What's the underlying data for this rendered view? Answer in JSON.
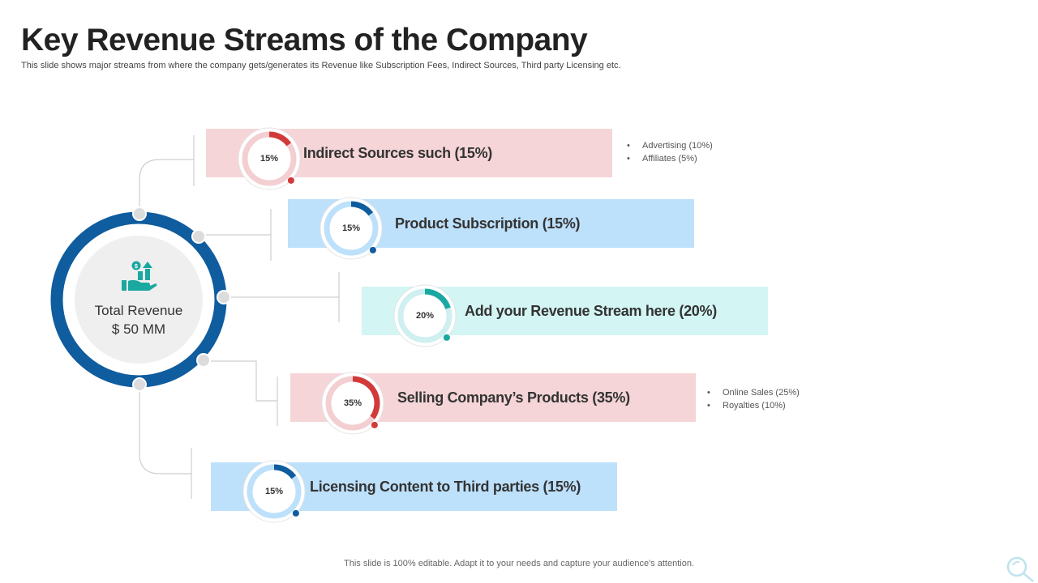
{
  "header": {
    "title": "Key Revenue Streams of the Company",
    "subtitle": "This slide shows major streams from where the company gets/generates its Revenue like Subscription Fees, Indirect Sources, Third party Licensing etc."
  },
  "hub": {
    "line1": "Total Revenue",
    "line2": "$ 50 MM",
    "icon": "money-growth-hand-icon",
    "ring_color": "#0f5c9e"
  },
  "streams": [
    {
      "label": "Indirect Sources such (15%)",
      "percent_text": "15%",
      "percent": 15,
      "bar_color": "#f5d5d7",
      "accent_color": "#d23a3a",
      "track_color": "#f3cfd1",
      "sub_items": [
        "Advertising (10%)",
        "Affiliates  (5%)"
      ]
    },
    {
      "label": "Product Subscription (15%)",
      "percent_text": "15%",
      "percent": 15,
      "bar_color": "#bde0fb",
      "accent_color": "#0f5c9e",
      "track_color": "#bde0fb",
      "sub_items": []
    },
    {
      "label": "Add your Revenue Stream here (20%)",
      "percent_text": "20%",
      "percent": 20,
      "bar_color": "#d3f5f3",
      "accent_color": "#1aa8a0",
      "track_color": "#cfeff0",
      "sub_items": []
    },
    {
      "label": "Selling Company’s Products (35%)",
      "percent_text": "35%",
      "percent": 35,
      "bar_color": "#f5d5d7",
      "accent_color": "#d23a3a",
      "track_color": "#f3cfd1",
      "sub_items": [
        "Online Sales (25%)",
        "Royalties  (10%)"
      ]
    },
    {
      "label": "Licensing Content to Third parties (15%)",
      "percent_text": "15%",
      "percent": 15,
      "bar_color": "#bde0fb",
      "accent_color": "#0f5c9e",
      "track_color": "#bde0fb",
      "sub_items": []
    }
  ],
  "footer": {
    "note": "This slide is 100% editable. Adapt it to your needs and capture your audience's attention."
  }
}
